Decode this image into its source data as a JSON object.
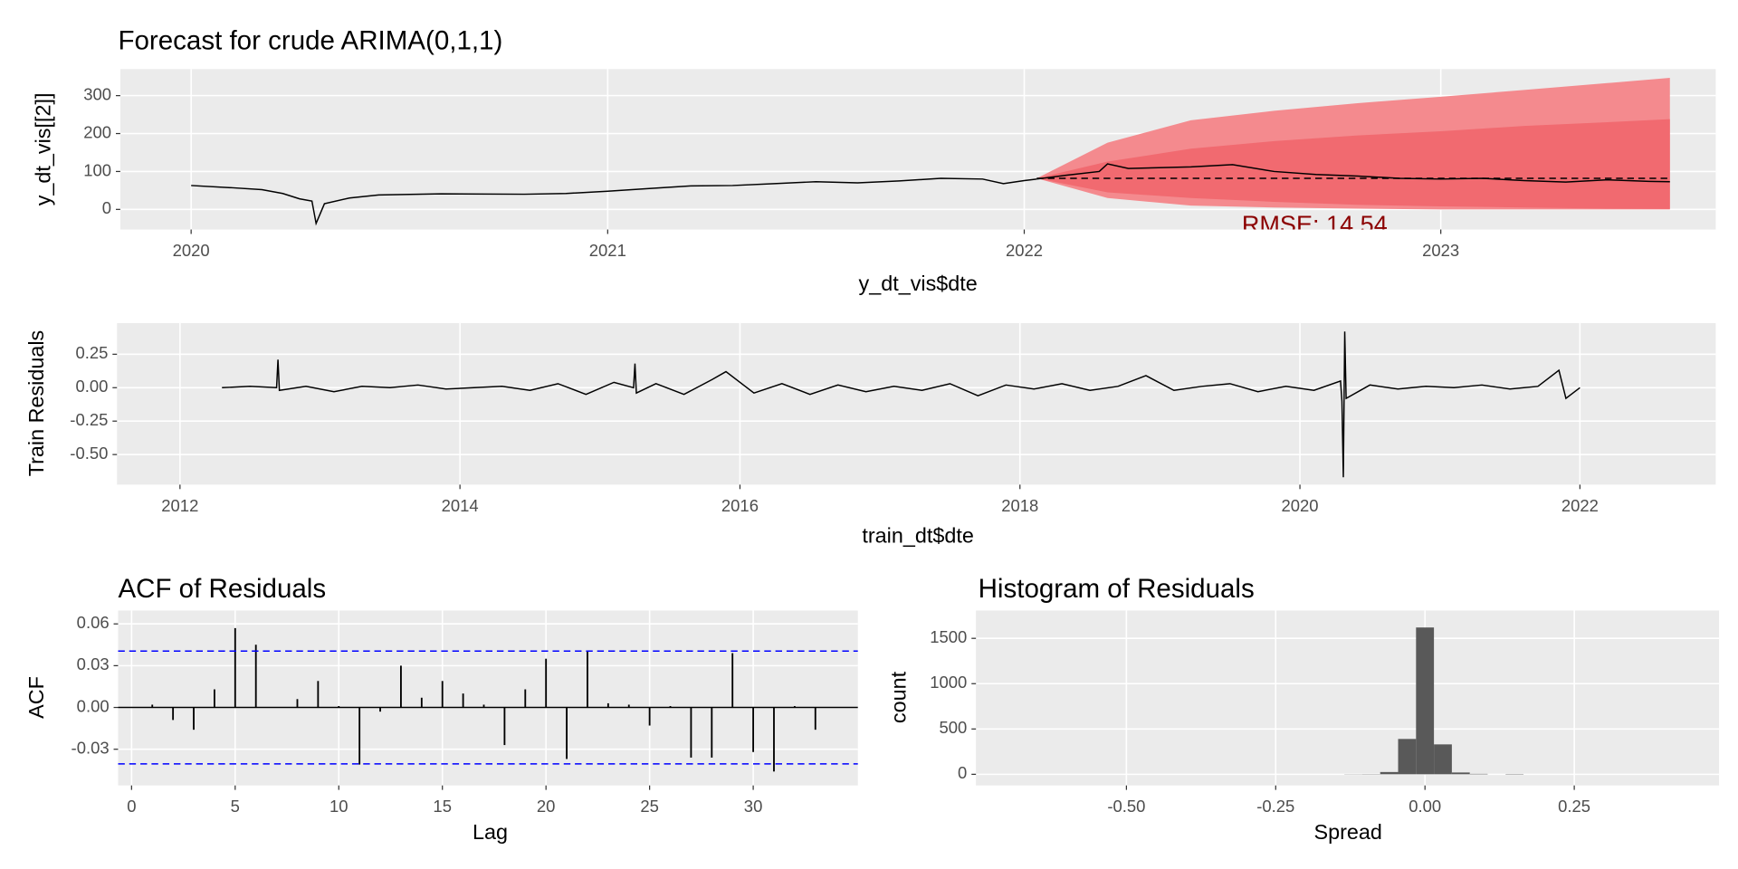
{
  "chart_data": [
    {
      "type": "line",
      "title": "Forecast for crude ARIMA(0,1,1)",
      "xlabel": "y_dt_vis$dte",
      "ylabel": "y_dt_vis[[2]]",
      "annotation": "RMSE: 14.54",
      "annotation_color": "#8b0000",
      "xlim": [
        2019.83,
        2023.66
      ],
      "xticks": [
        2020,
        2021,
        2022,
        2023
      ],
      "ylim": [
        -53,
        370
      ],
      "yticks": [
        0,
        100,
        200,
        300
      ],
      "grid": true,
      "bands": [
        {
          "color": "#f48a8e",
          "x": [
            2022.03,
            2022.2,
            2022.4,
            2022.6,
            2022.8,
            2023.0,
            2023.2,
            2023.4,
            2023.55
          ],
          "lower": [
            82,
            30,
            10,
            5,
            2,
            0,
            0,
            0,
            0
          ],
          "upper": [
            82,
            176,
            235,
            260,
            280,
            297,
            315,
            333,
            347
          ]
        },
        {
          "color": "#f16a70",
          "x": [
            2022.03,
            2022.2,
            2022.4,
            2022.6,
            2022.8,
            2023.0,
            2023.2,
            2023.4,
            2023.55
          ],
          "lower": [
            82,
            45,
            30,
            20,
            12,
            8,
            5,
            2,
            1
          ],
          "upper": [
            82,
            126,
            160,
            180,
            195,
            206,
            220,
            230,
            238
          ]
        }
      ],
      "series": [
        {
          "color": "#000000",
          "x": [
            2020.0,
            2020.1,
            2020.17,
            2020.22,
            2020.26,
            2020.29,
            2020.3,
            2020.32,
            2020.38,
            2020.45,
            2020.6,
            2020.8,
            2020.9,
            2021.0,
            2021.1,
            2021.2,
            2021.3,
            2021.4,
            2021.5,
            2021.6,
            2021.7,
            2021.8,
            2021.9,
            2021.95,
            2022.0,
            2022.03
          ],
          "values": [
            63,
            57,
            52,
            42,
            28,
            22,
            -37,
            15,
            30,
            38,
            41,
            40,
            42,
            48,
            55,
            62,
            63,
            68,
            73,
            70,
            75,
            82,
            80,
            68,
            76,
            80
          ]
        },
        {
          "color": "#000000",
          "x": [
            2022.03,
            2022.1,
            2022.18,
            2022.2,
            2022.25,
            2022.4,
            2022.5,
            2022.6,
            2022.7,
            2022.8,
            2022.9,
            2023.0,
            2023.1,
            2023.2,
            2023.3,
            2023.4,
            2023.5,
            2023.55
          ],
          "values": [
            80,
            90,
            100,
            120,
            108,
            112,
            118,
            100,
            92,
            88,
            82,
            80,
            82,
            76,
            72,
            78,
            74,
            73
          ]
        },
        {
          "color": "#000000",
          "dashed": true,
          "x": [
            2022.03,
            2023.55
          ],
          "values": [
            82,
            82
          ]
        }
      ]
    },
    {
      "type": "line",
      "xlabel": "train_dt$dte",
      "ylabel": "Train Residuals",
      "xlim": [
        2011.55,
        2022.97
      ],
      "xticks": [
        2012,
        2014,
        2016,
        2018,
        2020,
        2022
      ],
      "ylim": [
        -0.725,
        0.483
      ],
      "yticks": [
        0.25,
        {
          "value": 0,
          "label": "0.00"
        },
        -0.25,
        {
          "value": -0.5,
          "label": "-0.50"
        }
      ],
      "grid": true,
      "series": [
        {
          "color": "#000000",
          "x": [
            2012.3,
            2012.5,
            2012.69,
            2012.7,
            2012.71,
            2012.9,
            2013.1,
            2013.3,
            2013.5,
            2013.7,
            2013.9,
            2014.1,
            2014.3,
            2014.5,
            2014.7,
            2014.9,
            2015.1,
            2015.24,
            2015.25,
            2015.26,
            2015.4,
            2015.6,
            2015.8,
            2015.9,
            2016.1,
            2016.3,
            2016.5,
            2016.7,
            2016.9,
            2017.1,
            2017.3,
            2017.5,
            2017.7,
            2017.9,
            2018.1,
            2018.3,
            2018.5,
            2018.7,
            2018.9,
            2019.1,
            2019.3,
            2019.5,
            2019.7,
            2019.9,
            2020.1,
            2020.29,
            2020.3,
            2020.31,
            2020.32,
            2020.33,
            2020.5,
            2020.7,
            2020.9,
            2021.1,
            2021.3,
            2021.5,
            2021.7,
            2021.85,
            2021.9,
            2022.0
          ],
          "values": [
            0.0,
            0.01,
            0.0,
            0.21,
            -0.02,
            0.01,
            -0.03,
            0.01,
            0.0,
            0.02,
            -0.01,
            0.0,
            0.01,
            -0.02,
            0.03,
            -0.05,
            0.04,
            0.0,
            0.18,
            -0.04,
            0.03,
            -0.05,
            0.06,
            0.12,
            -0.04,
            0.03,
            -0.05,
            0.02,
            -0.03,
            0.01,
            -0.02,
            0.03,
            -0.06,
            0.02,
            -0.01,
            0.03,
            -0.02,
            0.01,
            0.09,
            -0.02,
            0.01,
            0.03,
            -0.03,
            0.01,
            -0.02,
            0.05,
            -0.1,
            -0.67,
            0.42,
            -0.08,
            0.02,
            -0.01,
            0.01,
            0.0,
            0.02,
            -0.01,
            0.01,
            0.13,
            -0.08,
            0.0
          ]
        }
      ]
    },
    {
      "type": "bar",
      "title": "ACF of Residuals",
      "xlabel": "Lag",
      "ylabel": "ACF",
      "xlim": [
        -0.65,
        35.05
      ],
      "xticks": [
        0,
        5,
        10,
        15,
        20,
        25,
        30
      ],
      "ylim": [
        -0.056,
        0.0696
      ],
      "yticks": [
        0.06,
        0.03,
        {
          "value": 0,
          "label": "0.00"
        },
        -0.03
      ],
      "grid": true,
      "color": "#000000",
      "hlines": [
        0.0405,
        -0.0405
      ],
      "hline_color": "#0000ff",
      "x": [
        1,
        2,
        3,
        4,
        5,
        6,
        7,
        8,
        9,
        10,
        11,
        12,
        13,
        14,
        15,
        16,
        17,
        18,
        19,
        20,
        21,
        22,
        23,
        24,
        25,
        26,
        27,
        28,
        29,
        30,
        31,
        32,
        33
      ],
      "values": [
        0.002,
        -0.009,
        -0.016,
        0.013,
        0.057,
        0.045,
        0.0,
        0.006,
        0.019,
        0.001,
        -0.041,
        -0.003,
        0.03,
        0.007,
        0.019,
        0.01,
        0.002,
        -0.027,
        0.013,
        0.035,
        -0.037,
        0.04,
        0.003,
        0.002,
        -0.013,
        0.001,
        -0.036,
        -0.036,
        0.039,
        -0.032,
        -0.046,
        0.001,
        -0.016
      ]
    },
    {
      "type": "histogram",
      "title": "Histogram of Residuals",
      "xlabel": "Spread",
      "ylabel": "count",
      "xlim": [
        -0.752,
        0.4925
      ],
      "xticks": [
        {
          "value": -0.5,
          "label": "-0.50"
        },
        -0.25,
        {
          "value": 0,
          "label": "0.00"
        },
        0.25
      ],
      "ylim": [
        -123,
        1807
      ],
      "yticks": [
        0,
        500,
        1000,
        1500
      ],
      "grid": true,
      "color": "#595959",
      "bins": [
        -0.135,
        -0.105,
        -0.075,
        -0.045,
        -0.015,
        0.015,
        0.045,
        0.075,
        0.105,
        0.135,
        0.165
      ],
      "values": [
        2,
        3,
        25,
        390,
        1620,
        330,
        20,
        5,
        0,
        4
      ]
    }
  ]
}
